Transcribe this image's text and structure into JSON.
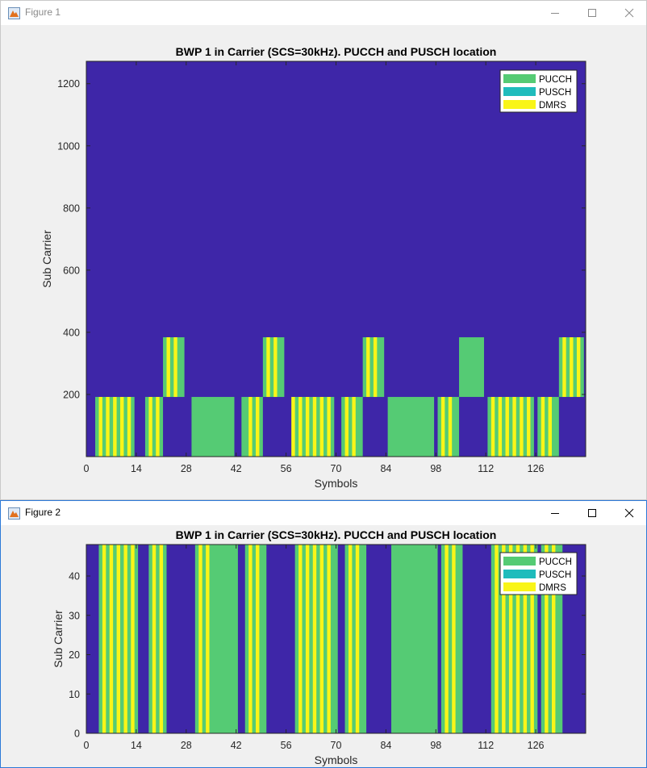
{
  "windows": [
    {
      "title": "Figure 1",
      "chart_data": {
        "type": "heatmap",
        "title": "BWP 1 in Carrier (SCS=30kHz). PUCCH and PUSCH location",
        "xlabel": "Symbols",
        "ylabel": "Sub Carrier",
        "xlim": [
          0,
          140
        ],
        "ylim": [
          0,
          1272
        ],
        "xticks": [
          0,
          14,
          28,
          42,
          56,
          70,
          84,
          98,
          112,
          126
        ],
        "yticks": [
          200,
          400,
          600,
          800,
          1000,
          1200
        ],
        "legend": [
          "PUCCH",
          "PUSCH",
          "DMRS"
        ],
        "legend_position": "top-right",
        "colors": {
          "background": "#3e26a8",
          "PUCCH": "#55cb74",
          "PUSCH": "#1fbcbc",
          "DMRS": "#f9f518"
        },
        "pusch_blocks": [
          {
            "x": [
              2.5,
              13.5
            ],
            "y": [
              0,
              192
            ]
          },
          {
            "x": [
              16.5,
              21.5
            ],
            "y": [
              0,
              192
            ]
          },
          {
            "x": [
              21.5,
              27.5
            ],
            "y": [
              192,
              384
            ]
          },
          {
            "x": [
              29.5,
              41.5
            ],
            "y": [
              0,
              192
            ]
          },
          {
            "x": [
              43.5,
              49.5
            ],
            "y": [
              0,
              192
            ]
          },
          {
            "x": [
              49.5,
              55.5
            ],
            "y": [
              192,
              384
            ]
          },
          {
            "x": [
              57.5,
              69.5
            ],
            "y": [
              0,
              192
            ]
          },
          {
            "x": [
              71.5,
              77.5
            ],
            "y": [
              0,
              192
            ]
          },
          {
            "x": [
              77.5,
              83.5
            ],
            "y": [
              192,
              384
            ]
          },
          {
            "x": [
              84.5,
              97.5
            ],
            "y": [
              0,
              192
            ]
          },
          {
            "x": [
              98.5,
              104.5
            ],
            "y": [
              0,
              192
            ]
          },
          {
            "x": [
              104.5,
              111.5
            ],
            "y": [
              192,
              384
            ]
          },
          {
            "x": [
              112.5,
              125.5
            ],
            "y": [
              0,
              192
            ]
          },
          {
            "x": [
              126.5,
              132.5
            ],
            "y": [
              0,
              192
            ]
          },
          {
            "x": [
              132.5,
              139.5
            ],
            "y": [
              192,
              384
            ]
          }
        ],
        "dmrs_symbols": [
          4,
          6,
          8,
          10,
          12,
          18,
          20,
          23,
          25,
          46,
          48,
          51,
          53,
          58,
          60,
          62,
          64,
          66,
          68,
          73,
          75,
          79,
          81,
          100,
          102,
          114,
          116,
          118,
          120,
          122,
          124,
          128,
          130,
          134,
          136,
          138
        ]
      }
    },
    {
      "title": "Figure 2",
      "chart_data": {
        "type": "heatmap",
        "title": "BWP 1 in Carrier (SCS=30kHz). PUCCH and PUSCH location",
        "xlabel": "Symbols",
        "ylabel": "Sub Carrier",
        "xlim": [
          0,
          140
        ],
        "ylim": [
          0,
          48
        ],
        "xticks": [
          0,
          14,
          28,
          42,
          56,
          70,
          84,
          98,
          112,
          126
        ],
        "yticks": [
          0,
          10,
          20,
          30,
          40
        ],
        "legend": [
          "PUCCH",
          "PUSCH",
          "DMRS"
        ],
        "legend_position": "top-right",
        "colors": {
          "background": "#3e26a8",
          "PUCCH": "#55cb74",
          "PUSCH": "#1fbcbc",
          "DMRS": "#f9f518"
        },
        "pusch_blocks": [
          {
            "x": [
              3.5,
              14.5
            ],
            "y": [
              0,
              48
            ]
          },
          {
            "x": [
              17.5,
              22.5
            ],
            "y": [
              0,
              48
            ]
          },
          {
            "x": [
              30.5,
              42.5
            ],
            "y": [
              0,
              48
            ]
          },
          {
            "x": [
              44.5,
              50.5
            ],
            "y": [
              0,
              48
            ]
          },
          {
            "x": [
              58.5,
              70.5
            ],
            "y": [
              0,
              48
            ]
          },
          {
            "x": [
              72.5,
              78.5
            ],
            "y": [
              0,
              48
            ]
          },
          {
            "x": [
              85.5,
              98.5
            ],
            "y": [
              0,
              48
            ]
          },
          {
            "x": [
              99.5,
              105.5
            ],
            "y": [
              0,
              48
            ]
          },
          {
            "x": [
              113.5,
              126.5
            ],
            "y": [
              0,
              48
            ]
          },
          {
            "x": [
              127.5,
              133.5
            ],
            "y": [
              0,
              48
            ]
          }
        ],
        "dmrs_symbols": [
          5,
          7,
          9,
          11,
          13,
          19,
          21,
          32,
          34,
          46,
          48,
          60,
          62,
          64,
          66,
          68,
          74,
          76,
          101,
          103,
          115,
          117,
          119,
          121,
          123,
          125,
          129,
          131
        ]
      }
    }
  ]
}
